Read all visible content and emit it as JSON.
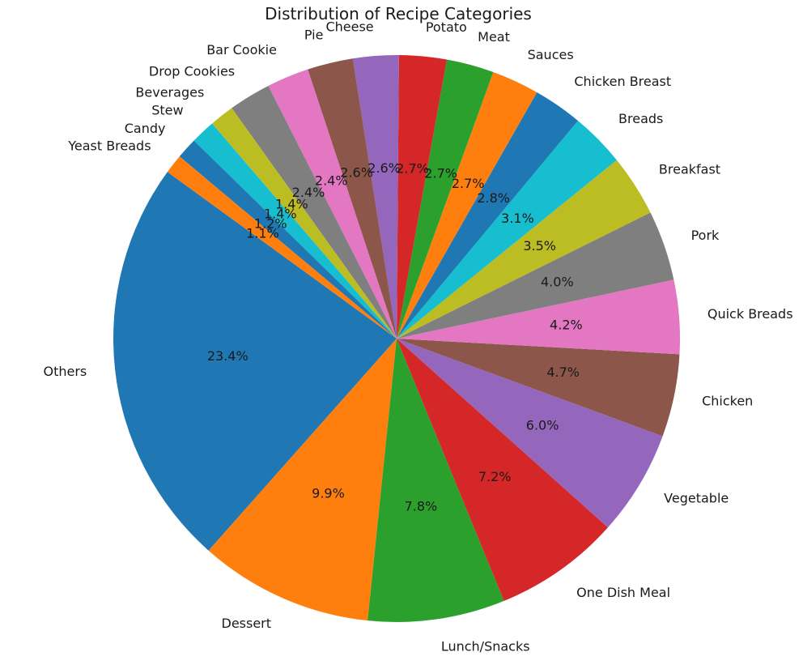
{
  "chart_data": {
    "type": "pie",
    "title": "Distribution of Recipe Categories",
    "legend": "none",
    "start_angle_deg": 144,
    "direction": "counterclockwise",
    "categories": [
      "Others",
      "Dessert",
      "Lunch/Snacks",
      "One Dish Meal",
      "Vegetable",
      "Chicken",
      "Quick Breads",
      "Pork",
      "Breakfast",
      "Breads",
      "Chicken Breast",
      "Sauces",
      "Meat",
      "Potato",
      "Cheese",
      "Pie",
      "Bar Cookie",
      "Drop Cookies",
      "Beverages",
      "Stew",
      "Candy",
      "Yeast Breads"
    ],
    "values": [
      23.4,
      9.9,
      7.8,
      7.2,
      6.0,
      4.7,
      4.2,
      4.0,
      3.5,
      3.1,
      2.8,
      2.7,
      2.7,
      2.7,
      2.6,
      2.6,
      2.4,
      2.4,
      1.4,
      1.4,
      1.2,
      1.1
    ],
    "value_labels": [
      "23.4%",
      "9.9%",
      "7.8%",
      "7.2%",
      "6.0%",
      "4.7%",
      "4.2%",
      "4.0%",
      "3.5%",
      "3.1%",
      "2.8%",
      "2.7%",
      "2.7%",
      "2.7%",
      "2.6%",
      "2.6%",
      "2.4%",
      "2.4%",
      "1.4%",
      "1.4%",
      "1.2%",
      "1.1%"
    ],
    "colors": [
      "#1f77b4",
      "#ff7f0e",
      "#2ca02c",
      "#d62728",
      "#9467bd",
      "#8c564b",
      "#e377c2",
      "#7f7f7f",
      "#bcbd22",
      "#17becf",
      "#1f77b4",
      "#ff7f0e",
      "#2ca02c",
      "#d62728",
      "#9467bd",
      "#8c564b",
      "#e377c2",
      "#7f7f7f",
      "#bcbd22",
      "#17becf",
      "#1f77b4",
      "#ff7f0e"
    ]
  }
}
